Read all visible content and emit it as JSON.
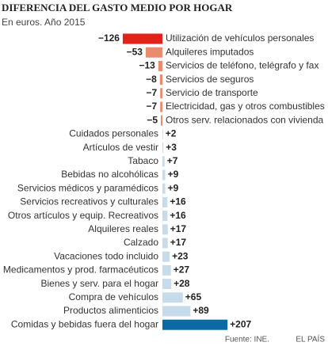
{
  "chart_data": {
    "type": "bar",
    "orientation": "horizontal",
    "title": "DIFERENCIA DEL GASTO MEDIO POR HOGAR",
    "subtitle": "En euros. Año 2015",
    "source": "Fuente: INE.",
    "publisher": "EL PAÍS",
    "categories": [
      "Utilización de vehículos personales",
      "Alquileres imputados",
      "Servicios de teléfono, telégrafo y fax",
      "Servicios de seguros",
      "Servicio de transporte",
      "Electricidad, gas y otros combustibles",
      "Otros serv. relacionados con vivienda",
      "Cuidados personales",
      "Artículos de vestir",
      "Tabaco",
      "Bebidas no alcohólicas",
      "Servicios médicos y paramédicos",
      "Servicios recreativos y culturales",
      "Otros artículos y equip. Recreativos",
      "Alquileres reales",
      "Calzado",
      "Vacaciones todo incluido",
      "Medicamentos y prod. farmacéuticos",
      "Bienes y serv. para el hogar",
      "Compra de vehículos",
      "Productos alimenticios",
      "Comidas y bebidas fuera del hogar"
    ],
    "values": [
      -126,
      -53,
      -13,
      -8,
      -7,
      -7,
      -5,
      2,
      3,
      7,
      9,
      9,
      16,
      16,
      17,
      17,
      23,
      27,
      28,
      65,
      89,
      207
    ],
    "value_labels": [
      "−126",
      "−53",
      "−13",
      "−8",
      "−7",
      "−7",
      "−5",
      "+2",
      "+3",
      "+7",
      "+9",
      "+9",
      "+16",
      "+16",
      "+17",
      "+17",
      "+23",
      "+27",
      "+28",
      "+65",
      "+89",
      "+207"
    ],
    "colors": [
      "#e2231a",
      "#eb8b6d",
      "#eb8b6d",
      "#eb8b6d",
      "#eb8b6d",
      "#eb8b6d",
      "#eb8b6d",
      "#c6dcea",
      "#c6dcea",
      "#c6dcea",
      "#c6dcea",
      "#c6dcea",
      "#c6dcea",
      "#c6dcea",
      "#c6dcea",
      "#c6dcea",
      "#c6dcea",
      "#c6dcea",
      "#c6dcea",
      "#c6dcea",
      "#c6dcea",
      "#0b6aa2"
    ]
  }
}
